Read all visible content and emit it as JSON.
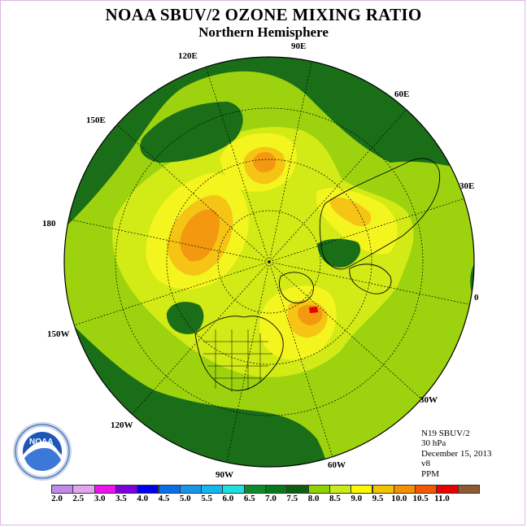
{
  "title": "NOAA SBUV/2 OZONE MIXING RATIO",
  "subtitle": "Northern Hemisphere",
  "longitude_labels": [
    "90E",
    "60E",
    "30E",
    "0",
    "30W",
    "60W",
    "90W",
    "120W",
    "150W",
    "180",
    "150E",
    "120E"
  ],
  "info": {
    "instrument": "N19 SBUV/2",
    "level": "30 hPa",
    "date": "December 15, 2013",
    "version": "v8",
    "units": "PPM"
  },
  "logo_text": "NOAA",
  "colorbar": {
    "labels": [
      "2.0",
      "2.5",
      "3.0",
      "3.5",
      "4.0",
      "4.5",
      "5.0",
      "5.5",
      "6.0",
      "6.5",
      "7.0",
      "7.5",
      "8.0",
      "8.5",
      "9.0",
      "9.5",
      "10.0",
      "10.5",
      "11.0"
    ],
    "colors": [
      "#c08ae8",
      "#e2a6f0",
      "#ee10ee",
      "#7a00e0",
      "#0000f0",
      "#0a6ee8",
      "#1796e8",
      "#14b8f0",
      "#1ee0e0",
      "#0e8c2c",
      "#087818",
      "#0e5e12",
      "#8fd400",
      "#c8ec18",
      "#fbf800",
      "#f5c200",
      "#f59000",
      "#f55800",
      "#e80000",
      "#8e5a30"
    ]
  },
  "map_colors": {
    "dark_green": "#1b6e18",
    "mid_green": "#2f8f21",
    "light_green": "#9cd30e",
    "yellow_green": "#d2ea16",
    "yellow": "#f4f41e",
    "gold": "#f6c414",
    "orange": "#f49810",
    "red": "#e60000"
  }
}
